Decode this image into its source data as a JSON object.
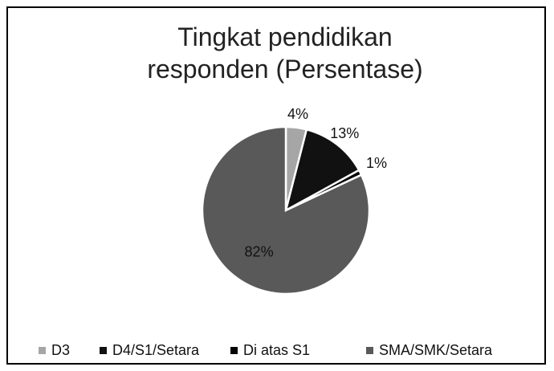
{
  "chart_data": {
    "type": "pie",
    "title": "Tingkat pendidikan responden (Persentase)",
    "categories": [
      "D3",
      "D4/S1/Setara",
      "Di atas S1",
      "SMA/SMK/Setara"
    ],
    "values": [
      4,
      13,
      1,
      82
    ],
    "value_labels": [
      "4%",
      "13%",
      "1%",
      "82%"
    ],
    "colors": [
      "#a6a6a6",
      "#111111",
      "#050505",
      "#595959"
    ],
    "legend": "bottom"
  }
}
